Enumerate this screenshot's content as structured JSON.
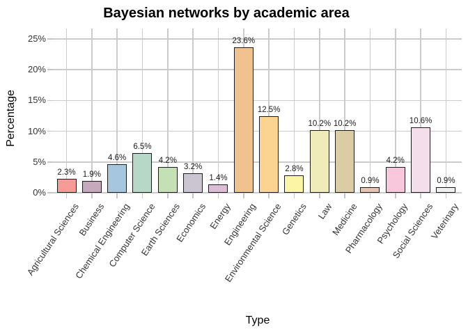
{
  "window": {
    "background": "#ffffff"
  },
  "chart_data": {
    "type": "bar",
    "title": "Bayesian networks by academic area",
    "xlabel": "Type",
    "ylabel": "Percentage",
    "ylim": [
      0,
      25
    ],
    "ytick_values": [
      0,
      5,
      10,
      15,
      20,
      25
    ],
    "ytick_labels": [
      "0%",
      "5%",
      "10%",
      "15%",
      "20%",
      "25%"
    ],
    "grid": true,
    "legend_position": "none",
    "categories": [
      "Agricultural Sciences",
      "Business",
      "Chemical Engineering",
      "Computer Science",
      "Earth Sciences",
      "Economics",
      "Energy",
      "Engineering",
      "Environmental Science",
      "Genetics",
      "Law",
      "Medicine",
      "Pharmacology",
      "Psychology",
      "Social Sciences",
      "Veterinary"
    ],
    "values": [
      2.3,
      1.9,
      4.6,
      6.5,
      4.2,
      3.2,
      1.4,
      23.6,
      12.5,
      2.8,
      10.2,
      10.2,
      0.9,
      4.2,
      10.6,
      0.9
    ],
    "value_labels": [
      "2.3%",
      "1.9%",
      "4.6%",
      "6.5%",
      "4.2%",
      "3.2%",
      "1.4%",
      "23.6%",
      "12.5%",
      "2.8%",
      "10.2%",
      "10.2%",
      "0.9%",
      "4.2%",
      "10.6%",
      "0.9%"
    ],
    "bar_colors": [
      "#F89B94",
      "#C6A9BB",
      "#A6C6DD",
      "#B7D7C7",
      "#C5E0B4",
      "#CBC5D2",
      "#DCBDD6",
      "#F0C28F",
      "#FBD492",
      "#FDF5A6",
      "#EFECB9",
      "#DACDA4",
      "#E8C3B0",
      "#F8C7DC",
      "#F5DEEB",
      "#F0F0F0"
    ],
    "style": {
      "bar_border_color": "#1a1a1a",
      "grid_color": "#cbcbcb",
      "tick_color": "#c4c4c4",
      "title_color": "#000000",
      "tick_label_color": "#333333"
    }
  }
}
